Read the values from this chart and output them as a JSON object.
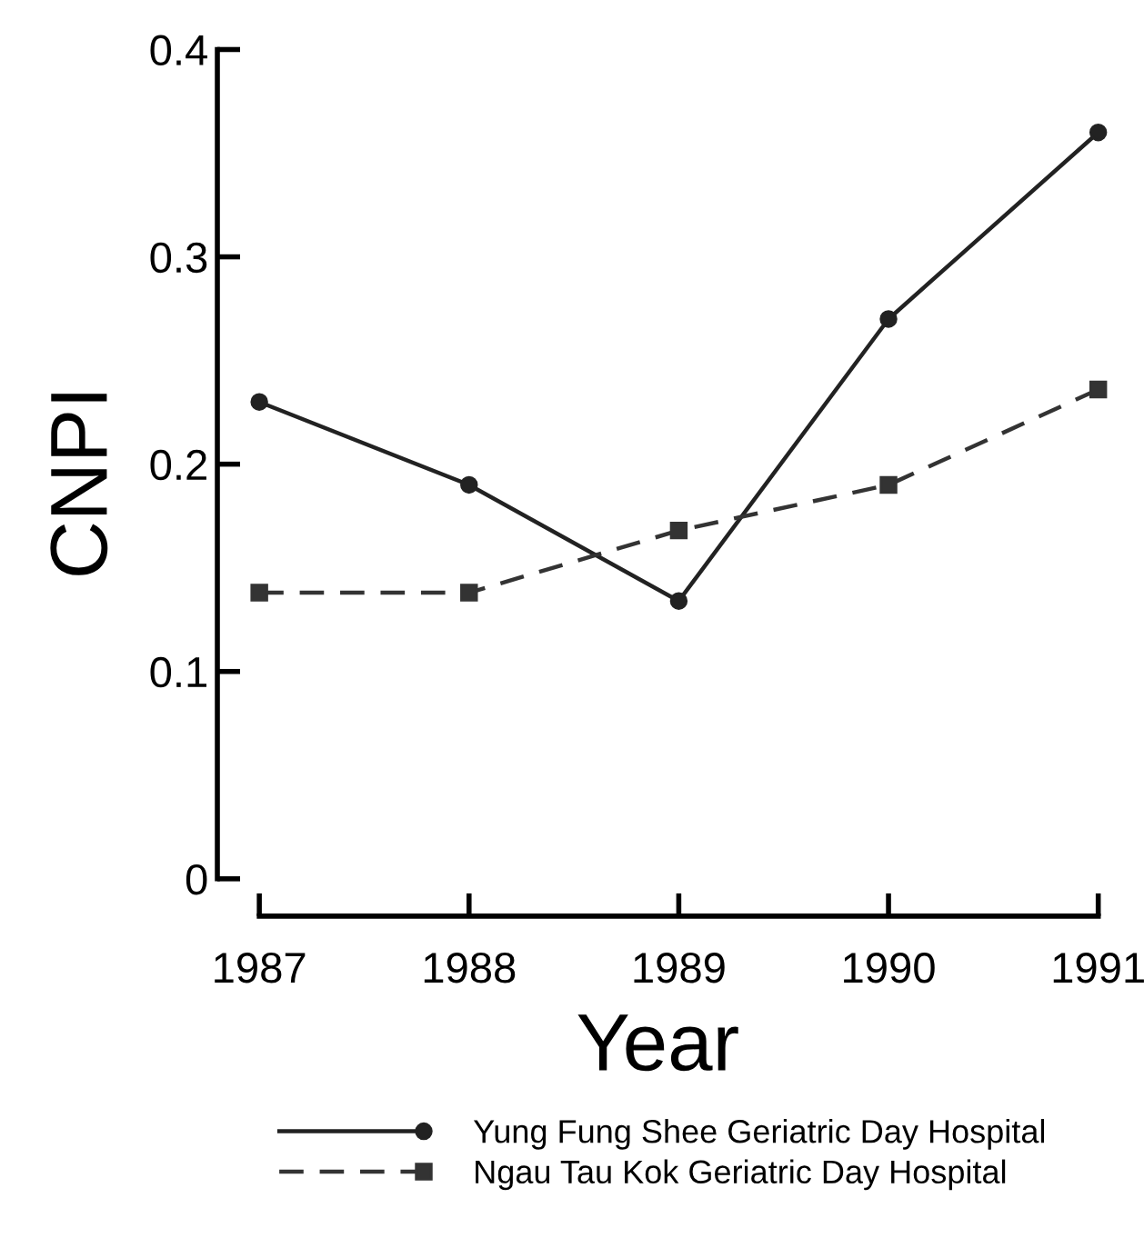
{
  "chart_data": {
    "type": "line",
    "xlabel": "Year",
    "ylabel": "CNPI",
    "x": [
      1987,
      1988,
      1989,
      1990,
      1991
    ],
    "xlim": [
      1986.8,
      1991
    ],
    "xticks": [
      1987,
      1988,
      1989,
      1990,
      1991
    ],
    "ylim": [
      -0.018,
      0.4
    ],
    "yticks": [
      {
        "value": 0,
        "label": "0"
      },
      0.1,
      0.2,
      0.3,
      0.4
    ],
    "series": [
      {
        "name": "Yung Fung Shee Geriatric Day Hospital",
        "color": "#222222",
        "values": [
          0.23,
          0.19,
          0.134,
          0.27,
          0.36
        ],
        "marker": "circle",
        "line_style": "solid"
      },
      {
        "name": "Ngau Tau Kok Geriatric Day Hospital",
        "color": "#333333",
        "values": [
          0.138,
          0.138,
          0.168,
          0.19,
          0.236
        ],
        "marker": "square",
        "line_style": "dashed"
      }
    ],
    "grid": false,
    "legend": "bottom"
  }
}
